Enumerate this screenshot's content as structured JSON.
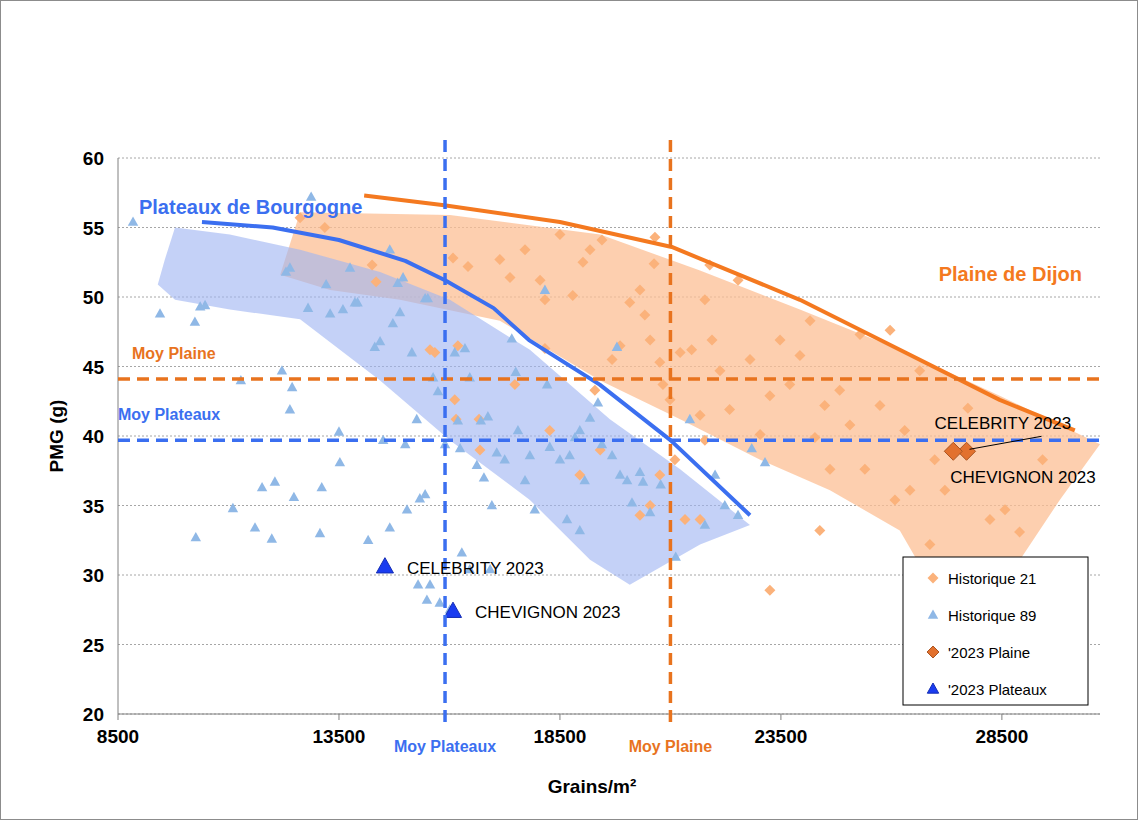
{
  "chart_data": {
    "type": "scatter",
    "x_label": "Grains/m²",
    "y_label": "PMG (g)",
    "xlim": [
      8500,
      30720
    ],
    "ylim": [
      20,
      60
    ],
    "xticks": [
      8500,
      13500,
      18500,
      23500,
      28500
    ],
    "yticks": [
      20,
      25,
      30,
      35,
      40,
      45,
      50,
      55,
      60
    ],
    "grid": true,
    "legend": "lower right",
    "series": [
      {
        "name": "Historique 21",
        "color": "#fbb27b",
        "marker": "diamond",
        "x": [
          12620,
          13180,
          14250,
          14340,
          15670,
          16080,
          16420,
          16190,
          16120,
          16150,
          16690,
          17140,
          17370,
          17710,
          18050,
          18160,
          18500,
          18790,
          19020,
          19180,
          19450,
          19680,
          19860,
          20080,
          20310,
          20420,
          20630,
          20650,
          20540,
          20760,
          20830,
          20990,
          21100,
          21220,
          21480,
          21780,
          21890,
          21940,
          21670,
          21780,
          22120,
          22340,
          22530,
          22800,
          23030,
          23250,
          23480,
          23700,
          23930,
          24160,
          24270,
          24490,
          24610,
          24830,
          25060,
          25290,
          25400,
          25740,
          25970,
          26080,
          26300,
          26420,
          26640,
          26980,
          27210,
          26870,
          27730,
          28230,
          28570,
          28900,
          29420,
          20540,
          20310,
          20760,
          21330,
          21670,
          23250,
          24380,
          19410,
          19290,
          18950,
          18270,
          18160,
          17480,
          16670,
          15560
        ],
        "values": [
          55.7,
          55.0,
          52.3,
          51.1,
          46.0,
          52.8,
          52.2,
          46.5,
          42.6,
          41.2,
          39.0,
          52.7,
          51.4,
          53.4,
          51.2,
          49.8,
          54.5,
          50.1,
          52.5,
          53.4,
          54.1,
          45.5,
          46.5,
          49.6,
          50.5,
          48.7,
          52.4,
          54.3,
          46.9,
          45.3,
          43.7,
          42.6,
          38.3,
          46.0,
          46.2,
          49.8,
          52.3,
          46.9,
          41.5,
          39.7,
          44.7,
          41.9,
          51.2,
          45.5,
          40.1,
          42.9,
          46.9,
          43.7,
          45.8,
          48.3,
          39.9,
          42.2,
          37.6,
          43.3,
          40.8,
          47.3,
          37.6,
          42.2,
          47.6,
          35.4,
          40.4,
          36.1,
          44.7,
          38.3,
          36.1,
          32.2,
          42.0,
          34.0,
          34.7,
          33.1,
          38.3,
          35.0,
          34.3,
          37.2,
          34.0,
          34.0,
          28.9,
          33.2,
          39.0,
          43.3,
          37.2,
          40.4,
          46.3,
          43.7,
          41.2,
          46.2
        ]
      },
      {
        "name": "Historique 89",
        "color": "#8fb8e6",
        "marker": "triangle",
        "x": [
          8840,
          9450,
          10240,
          10360,
          10470,
          10260,
          11100,
          11280,
          11600,
          11760,
          11980,
          12050,
          12210,
          12390,
          12440,
          12480,
          12300,
          12390,
          12800,
          12870,
          13110,
          13070,
          13210,
          13300,
          13500,
          13520,
          13590,
          13750,
          13860,
          13920,
          14160,
          14310,
          14430,
          14500,
          14650,
          14650,
          14720,
          14830,
          14880,
          14950,
          15000,
          15040,
          15150,
          15260,
          15290,
          15330,
          15450,
          15450,
          15510,
          15490,
          15630,
          15740,
          15900,
          16010,
          16120,
          16190,
          16240,
          16280,
          16350,
          16460,
          16620,
          16710,
          16780,
          16870,
          16920,
          16960,
          17070,
          17250,
          17410,
          17500,
          17550,
          17710,
          17820,
          18160,
          18210,
          18270,
          18500,
          18720,
          18840,
          18950,
          19060,
          19180,
          19360,
          19450,
          19680,
          19790,
          19860,
          20020,
          20130,
          20310,
          20380,
          20540,
          20780,
          21120,
          21440,
          21780,
          22010,
          22230,
          22530,
          23140,
          22840,
          18660,
          18950,
          17930,
          16460,
          15780,
          15560
        ],
        "values": [
          55.4,
          48.8,
          48.2,
          49.3,
          49.4,
          32.7,
          34.8,
          44.0,
          33.4,
          36.3,
          32.6,
          36.7,
          44.7,
          41.9,
          43.5,
          35.6,
          51.8,
          52.1,
          49.2,
          57.2,
          36.3,
          33.0,
          50.9,
          48.8,
          40.3,
          38.1,
          49.1,
          52.1,
          49.6,
          49.6,
          32.5,
          46.4,
          46.8,
          39.7,
          53.4,
          33.4,
          48.1,
          51.0,
          48.9,
          51.4,
          39.4,
          34.7,
          46.0,
          41.2,
          29.3,
          35.5,
          49.9,
          35.8,
          49.9,
          28.2,
          44.2,
          43.2,
          39.4,
          27.5,
          46.0,
          41.1,
          39.1,
          31.6,
          46.3,
          44.2,
          37.9,
          41.1,
          37.0,
          41.4,
          30.4,
          35.0,
          38.8,
          38.3,
          47.0,
          44.6,
          40.4,
          36.8,
          38.6,
          50.5,
          43.7,
          39.2,
          38.3,
          38.6,
          39.9,
          40.4,
          36.8,
          41.3,
          42.4,
          39.4,
          38.6,
          46.4,
          37.2,
          36.8,
          35.2,
          37.4,
          36.7,
          34.5,
          36.5,
          31.3,
          41.2,
          33.6,
          37.2,
          35.0,
          34.3,
          38.1,
          39.1,
          34.0,
          33.2,
          34.7,
          30.4,
          28.0,
          29.3
        ]
      },
      {
        "name": "'2023 Plaine",
        "color": "#e2712e",
        "marker": "diamond",
        "x": [
          27700,
          27400
        ],
        "values": [
          38.9,
          38.9
        ],
        "point_labels": [
          "CELEBRITY 2023",
          "CHEVIGNON 2023"
        ]
      },
      {
        "name": "'2023 Plateaux",
        "color": "#1a3cf0",
        "marker": "triangle",
        "x": [
          14540,
          16080
        ],
        "values": [
          30.6,
          27.4
        ],
        "point_labels": [
          "CELEBRITY 2023",
          "CHEVIGNON 2023"
        ]
      }
    ],
    "curves": [
      {
        "label": "Plateaux de Bourgogne",
        "color": "#3b6ff0",
        "x": [
          10400,
          12000,
          13500,
          15000,
          15900,
          17000,
          17800,
          19400,
          21000,
          22800
        ],
        "y": [
          55.4,
          55.0,
          54.1,
          52.6,
          51.2,
          49.2,
          46.9,
          43.7,
          39.7,
          34.3
        ]
      },
      {
        "label": "Plaine de Dijon",
        "color": "#f47920",
        "x": [
          14070,
          15880,
          18500,
          21030,
          23930,
          26190,
          28450,
          30150
        ],
        "y": [
          57.3,
          56.6,
          55.4,
          53.6,
          49.8,
          46.2,
          42.6,
          40.4
        ]
      }
    ],
    "areas": [
      {
        "color": "#fcbf94",
        "x": [
          12620,
          16010,
          19410,
          21670,
          23930,
          26190,
          28450,
          30720,
          29810,
          28910,
          28230,
          27100,
          26190,
          24610,
          23030,
          21220,
          19410,
          17140,
          14880,
          13300,
          12170
        ],
        "y": [
          56.1,
          55.9,
          54.5,
          51.9,
          49.1,
          46.2,
          42.9,
          39.4,
          35.4,
          31.1,
          28.2,
          28.2,
          33.2,
          36.1,
          38.3,
          41.2,
          44.0,
          48.3,
          49.8,
          50.5,
          51.6
        ]
      },
      {
        "color": "#9fb4f2",
        "x": [
          9790,
          11030,
          12620,
          14430,
          16010,
          17820,
          19630,
          21220,
          22800,
          21670,
          20080,
          19180,
          17820,
          16010,
          14430,
          12620,
          11030,
          9790,
          9400,
          9560
        ],
        "y": [
          55.0,
          54.5,
          53.4,
          51.8,
          49.8,
          46.2,
          41.2,
          37.6,
          33.6,
          32.2,
          29.3,
          31.1,
          35.4,
          39.7,
          44.0,
          48.4,
          49.1,
          49.8,
          50.9,
          52.7
        ]
      }
    ],
    "reference_lines": [
      {
        "axis": "y",
        "value": 44.1,
        "label": "Moy Plaine",
        "color": "#e8731e",
        "line_style": "dashed"
      },
      {
        "axis": "y",
        "value": 39.7,
        "label": "Moy Plateaux",
        "color": "#3b6ff0",
        "line_style": "dashed"
      },
      {
        "axis": "x",
        "value": 15900,
        "label": "Moy Plateaux",
        "color": "#3b6ff0",
        "line_style": "dashed"
      },
      {
        "axis": "x",
        "value": 21000,
        "label": "Moy Plaine",
        "color": "#e8731e",
        "line_style": "dashed"
      }
    ]
  }
}
